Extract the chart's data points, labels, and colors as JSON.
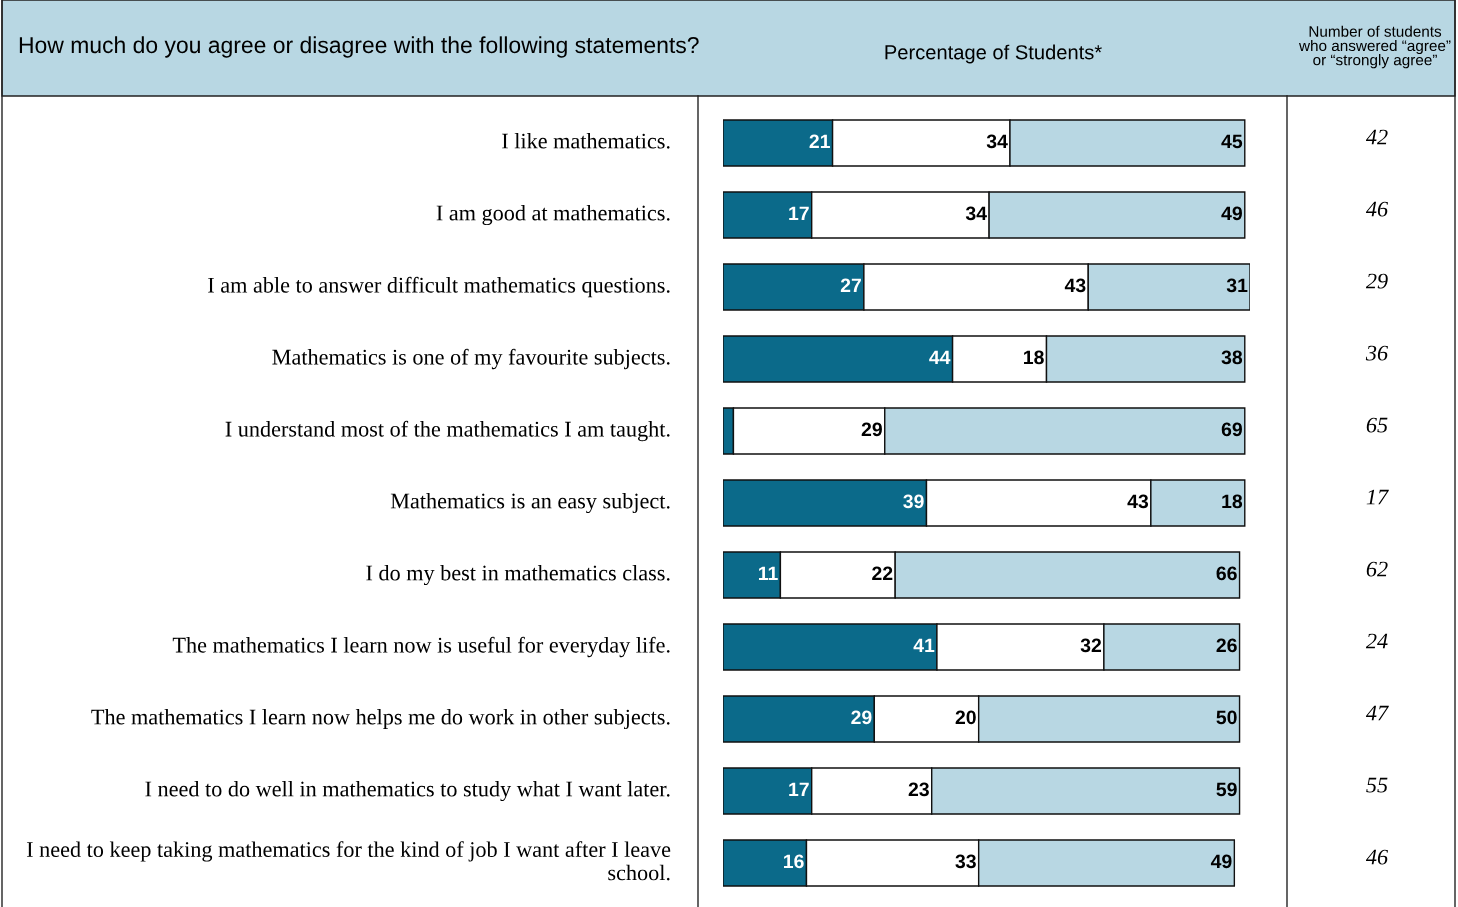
{
  "chart_data": {
    "type": "bar",
    "orientation": "horizontal",
    "stacked": true,
    "tick_labels": "y",
    "title": "How much do you agree or disagree with the following statements?",
    "xlabel": "Percentage of Students*",
    "categories": [
      "I like mathematics.",
      "I am good at mathematics.",
      "I am able to answer difficult mathematics questions.",
      "Mathematics is one of my favourite subjects.",
      "I understand most of the mathematics I am taught.",
      "Mathematics is an easy subject.",
      "I do my best in mathematics class.",
      "The mathematics I learn now is useful for everyday life.",
      "The mathematics I learn now helps me do work in other subjects.",
      "I need to do well in mathematics to study what I want later.",
      "I need to keep taking mathematics for the kind of job I want after I leave school."
    ],
    "series": [
      {
        "color": "#0b6a8a",
        "values": [
          21,
          17,
          27,
          44,
          2,
          39,
          11,
          41,
          29,
          17,
          16
        ],
        "value_labels": [
          "21",
          "17",
          "27",
          "44",
          null,
          "39",
          "11",
          "41",
          "29",
          "17",
          "16"
        ]
      },
      {
        "color": "#ffffff",
        "values": [
          34,
          34,
          43,
          18,
          29,
          43,
          22,
          32,
          20,
          23,
          33
        ],
        "value_labels": [
          "34",
          "34",
          "43",
          "18",
          "29",
          "43",
          "22",
          "32",
          "20",
          "23",
          "33"
        ]
      },
      {
        "color": "#b8d7e3",
        "values": [
          45,
          49,
          31,
          38,
          69,
          18,
          66,
          26,
          50,
          59,
          49
        ],
        "value_labels": [
          "45",
          "49",
          "31",
          "38",
          "69",
          "18",
          "66",
          "26",
          "50",
          "59",
          "49"
        ]
      }
    ],
    "annotations": [
      "Number of students who answered “agree” or “strongly agree”",
      "42",
      "46",
      "29",
      "36",
      "65",
      "17",
      "62",
      "24",
      "47",
      "55",
      "46"
    ]
  }
}
